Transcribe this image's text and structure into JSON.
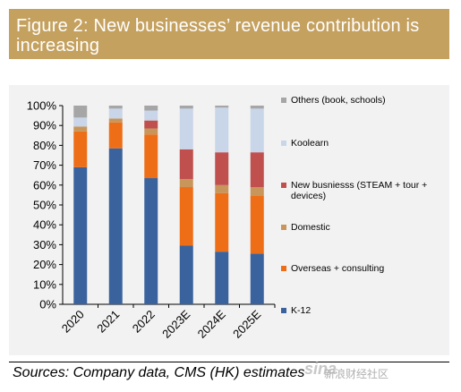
{
  "title": "Figure 2: New businesses’ revenue contribution is increasing",
  "source": "Sources: Company data, CMS (HK) estimates",
  "watermark": {
    "logo": "sina",
    "text": "新浪财经社区"
  },
  "colors": {
    "title_bg": "#c5a15f",
    "k12": "#3a639e",
    "overseas": "#ee6e18",
    "domestic": "#c8965a",
    "new_business": "#c0504d",
    "koolearn": "#c9d5e8",
    "others": "#a6a6a6"
  },
  "chart_data": {
    "type": "bar",
    "stacked": true,
    "categories": [
      "2020",
      "2021",
      "2022",
      "2023E",
      "2024E",
      "2025E"
    ],
    "ylim": [
      0,
      100
    ],
    "yticks": [
      "0%",
      "10%",
      "20%",
      "30%",
      "40%",
      "50%",
      "60%",
      "70%",
      "80%",
      "90%",
      "100%"
    ],
    "legend_position": "right",
    "series": [
      {
        "name": "K-12",
        "key": "k12",
        "values": [
          69,
          78.5,
          63.5,
          29.5,
          26.5,
          25.5
        ]
      },
      {
        "name": "Overseas + consulting",
        "key": "overseas",
        "values": [
          18,
          13,
          22,
          29.5,
          29.5,
          29
        ]
      },
      {
        "name": "Domestic",
        "key": "domestic",
        "values": [
          2.5,
          2,
          3,
          4,
          4,
          4.5
        ]
      },
      {
        "name": "New busniesss (STEAM + tour + devices)",
        "key": "new_business",
        "values": [
          0,
          0,
          4,
          15,
          16.5,
          17.5
        ]
      },
      {
        "name": "Koolearn",
        "key": "koolearn",
        "values": [
          4.5,
          5,
          5,
          20.5,
          22.5,
          22
        ]
      },
      {
        "name": "Others (book, schools)",
        "key": "others",
        "values": [
          6,
          1.5,
          2.5,
          1.5,
          1,
          1.5
        ]
      }
    ],
    "legend_order": [
      "others",
      "koolearn",
      "new_business",
      "domestic",
      "overseas",
      "k12"
    ]
  }
}
